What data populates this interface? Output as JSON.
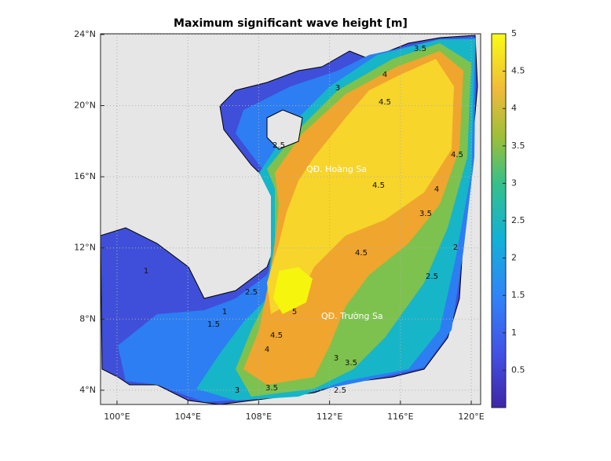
{
  "title": "Maximum significant wave height [m]",
  "map": {
    "xlim": [
      99.07,
      120.53
    ],
    "ylim": [
      3.2,
      24.04
    ],
    "xticks": [
      {
        "value": 100,
        "label": "100°E"
      },
      {
        "value": 104,
        "label": "104°E"
      },
      {
        "value": 108,
        "label": "108°E"
      },
      {
        "value": 112,
        "label": "112°E"
      },
      {
        "value": 116,
        "label": "116°E"
      },
      {
        "value": 120,
        "label": "120°E"
      }
    ],
    "yticks": [
      {
        "value": 4,
        "label": "4°N"
      },
      {
        "value": 8,
        "label": "8°N"
      },
      {
        "value": 12,
        "label": "12°N"
      },
      {
        "value": 16,
        "label": "16°N"
      },
      {
        "value": 20,
        "label": "20°N"
      },
      {
        "value": 24,
        "label": "24°N"
      }
    ],
    "grid": true
  },
  "colorbar": {
    "lim": [
      0,
      5
    ],
    "ticks": [
      0.5,
      1,
      1.5,
      2,
      2.5,
      3,
      3.5,
      4,
      4.5,
      5
    ]
  },
  "annotations": [
    "QĐ. Hoàng Sa",
    "QĐ. Trường Sa"
  ],
  "contour_labels": [
    "4.5",
    "4",
    "3.5",
    "4.5",
    "4.5",
    "4",
    "3.5",
    "4.5",
    "5",
    "4.5",
    "4",
    "3",
    "3.5",
    "2.5",
    "3",
    "3.5",
    "2.5",
    "2",
    "1.5",
    "1",
    "2.5",
    "1",
    "3",
    "2.5"
  ]
}
